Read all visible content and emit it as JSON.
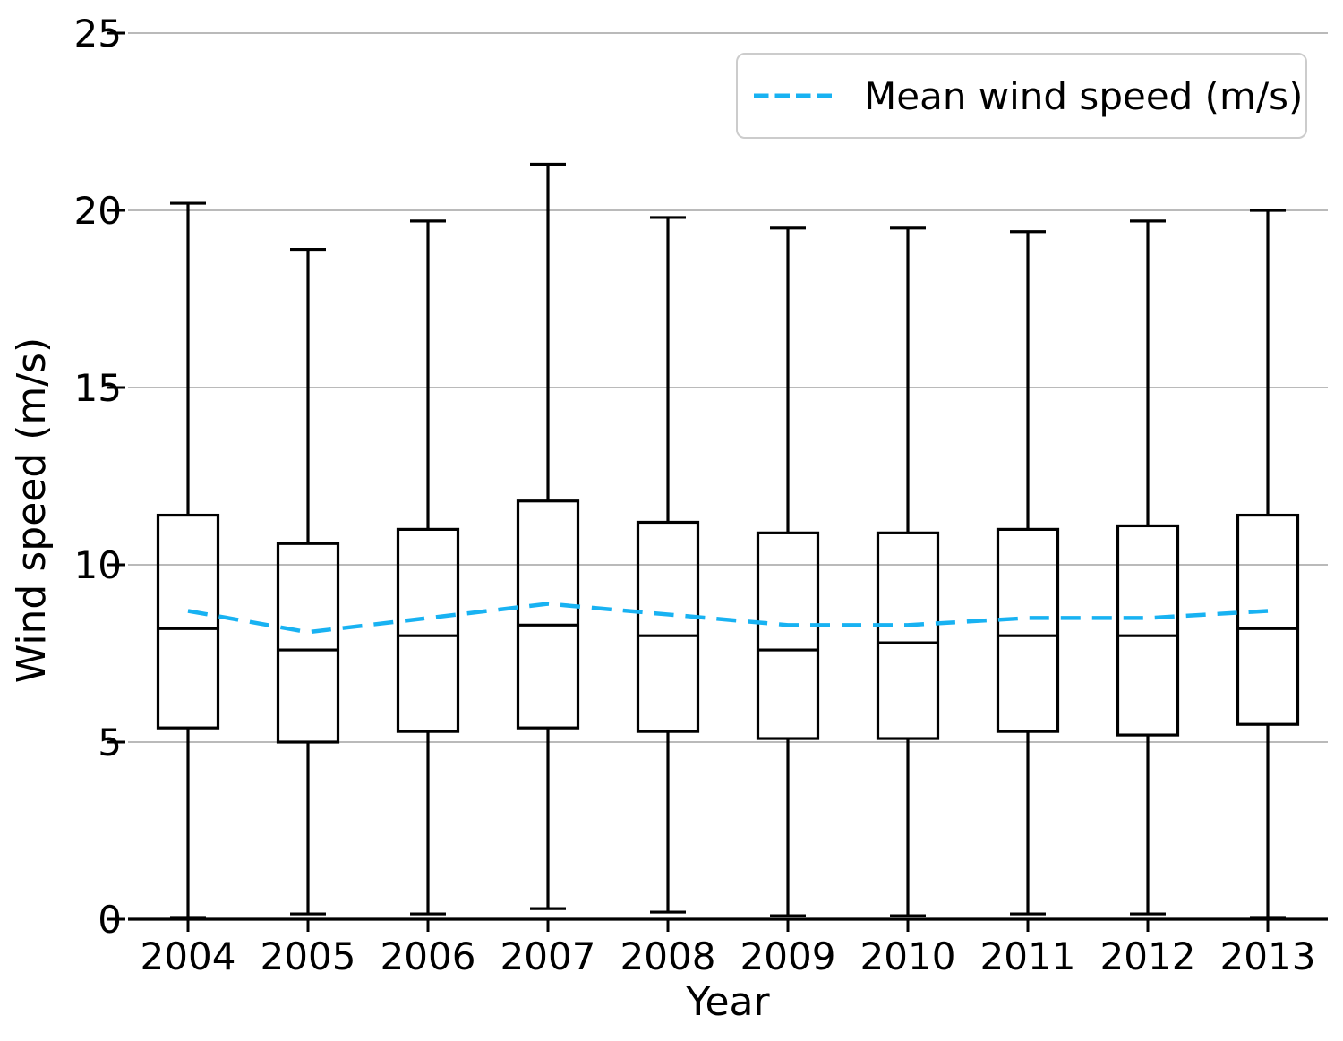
{
  "figure": {
    "background": "#ffffff",
    "text_color": "#000000"
  },
  "chart_data": {
    "type": "boxplot",
    "title": "",
    "xlabel": "Year",
    "ylabel": "Wind speed (m/s)",
    "categories": [
      "2004",
      "2005",
      "2006",
      "2007",
      "2008",
      "2009",
      "2010",
      "2011",
      "2012",
      "2013"
    ],
    "yticks": [
      0,
      5,
      10,
      15,
      20,
      25
    ],
    "ylim": [
      0,
      25.6
    ],
    "grid": {
      "axis": "y",
      "color": "#b0b0b0",
      "on": true
    },
    "box_style": {
      "stroke": "#000000",
      "fill": "none"
    },
    "boxes": [
      {
        "category": "2004",
        "whisker_low": 0.05,
        "q1": 5.4,
        "median": 8.2,
        "q3": 11.4,
        "whisker_high": 20.2
      },
      {
        "category": "2005",
        "whisker_low": 0.15,
        "q1": 5.0,
        "median": 7.6,
        "q3": 10.6,
        "whisker_high": 18.9
      },
      {
        "category": "2006",
        "whisker_low": 0.15,
        "q1": 5.3,
        "median": 8.0,
        "q3": 11.0,
        "whisker_high": 19.7
      },
      {
        "category": "2007",
        "whisker_low": 0.3,
        "q1": 5.4,
        "median": 8.3,
        "q3": 11.8,
        "whisker_high": 21.3
      },
      {
        "category": "2008",
        "whisker_low": 0.2,
        "q1": 5.3,
        "median": 8.0,
        "q3": 11.2,
        "whisker_high": 19.8
      },
      {
        "category": "2009",
        "whisker_low": 0.1,
        "q1": 5.1,
        "median": 7.6,
        "q3": 10.9,
        "whisker_high": 19.5
      },
      {
        "category": "2010",
        "whisker_low": 0.1,
        "q1": 5.1,
        "median": 7.8,
        "q3": 10.9,
        "whisker_high": 19.5
      },
      {
        "category": "2011",
        "whisker_low": 0.15,
        "q1": 5.3,
        "median": 8.0,
        "q3": 11.0,
        "whisker_high": 19.4
      },
      {
        "category": "2012",
        "whisker_low": 0.15,
        "q1": 5.2,
        "median": 8.0,
        "q3": 11.1,
        "whisker_high": 19.7
      },
      {
        "category": "2013",
        "whisker_low": 0.05,
        "q1": 5.5,
        "median": 8.2,
        "q3": 11.4,
        "whisker_high": 20.0
      }
    ],
    "mean_line": {
      "label": "Mean wind speed (m/s)",
      "values": [
        8.7,
        8.1,
        8.5,
        8.9,
        8.6,
        8.3,
        8.3,
        8.5,
        8.5,
        8.7
      ],
      "color": "#18b2f2",
      "style": "dashed"
    },
    "legend": {
      "position": "upper right",
      "entries": [
        {
          "label": "Mean wind speed (m/s)",
          "color": "#18b2f2",
          "line_style": "dashed"
        }
      ]
    }
  }
}
